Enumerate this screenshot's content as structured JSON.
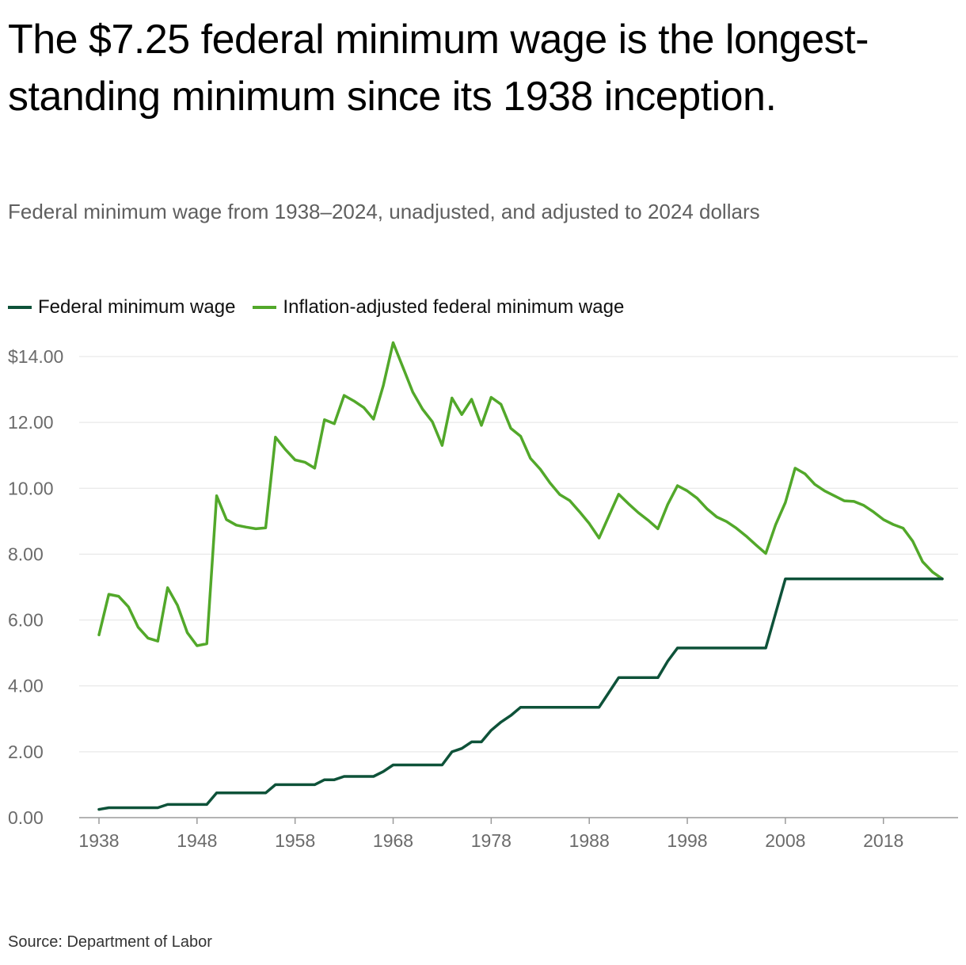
{
  "title": "The $7.25 federal minimum wage is the longest-standing minimum since its 1938 inception.",
  "subtitle": "Federal minimum wage from 1938–2024, unadjusted, and adjusted to 2024 dollars",
  "source": "Source: Department of Labor",
  "colors": {
    "nominal": "#0e5239",
    "adjusted": "#52a82a"
  },
  "chart_data": {
    "type": "line",
    "title": "The $7.25 federal minimum wage is the longest-standing minimum since its 1938 inception.",
    "subtitle": "Federal minimum wage from 1938–2024, unadjusted, and adjusted to 2024 dollars",
    "xlabel": "",
    "ylabel": "",
    "xlim": [
      1938,
      2024
    ],
    "ylim": [
      0,
      14
    ],
    "x_ticks": [
      1938,
      1948,
      1958,
      1968,
      1978,
      1988,
      1998,
      2008,
      2018
    ],
    "x_tick_labels": [
      "1938",
      "1948",
      "1958",
      "1968",
      "1978",
      "1988",
      "1998",
      "2008",
      "2018"
    ],
    "y_ticks": [
      0,
      2,
      4,
      6,
      8,
      10,
      12,
      14
    ],
    "y_tick_labels": [
      "0.00",
      "2.00",
      "4.00",
      "6.00",
      "8.00",
      "10.00",
      "12.00",
      "$14.00"
    ],
    "grid": true,
    "legend_position": "top-left",
    "x": [
      1938,
      1939,
      1940,
      1941,
      1942,
      1943,
      1944,
      1945,
      1946,
      1947,
      1948,
      1949,
      1950,
      1951,
      1952,
      1953,
      1954,
      1955,
      1956,
      1957,
      1958,
      1959,
      1960,
      1961,
      1962,
      1963,
      1964,
      1965,
      1966,
      1967,
      1968,
      1969,
      1970,
      1971,
      1972,
      1973,
      1974,
      1975,
      1976,
      1977,
      1978,
      1979,
      1980,
      1981,
      1982,
      1983,
      1984,
      1985,
      1986,
      1987,
      1988,
      1989,
      1990,
      1991,
      1992,
      1993,
      1994,
      1995,
      1996,
      1997,
      1998,
      1999,
      2000,
      2001,
      2002,
      2003,
      2004,
      2005,
      2006,
      2007,
      2008,
      2009,
      2010,
      2011,
      2012,
      2013,
      2014,
      2015,
      2016,
      2017,
      2018,
      2019,
      2020,
      2021,
      2022,
      2023,
      2024
    ],
    "series": [
      {
        "name": "Federal minimum wage",
        "values": [
          0.25,
          0.3,
          0.3,
          0.3,
          0.3,
          0.3,
          0.3,
          0.4,
          0.4,
          0.4,
          0.4,
          0.4,
          0.75,
          0.75,
          0.75,
          0.75,
          0.75,
          0.75,
          1.0,
          1.0,
          1.0,
          1.0,
          1.0,
          1.15,
          1.15,
          1.25,
          1.25,
          1.25,
          1.25,
          1.4,
          1.6,
          1.6,
          1.6,
          1.6,
          1.6,
          1.6,
          2.0,
          2.1,
          2.3,
          2.3,
          2.65,
          2.9,
          3.1,
          3.35,
          3.35,
          3.35,
          3.35,
          3.35,
          3.35,
          3.35,
          3.35,
          3.35,
          3.8,
          4.25,
          4.25,
          4.25,
          4.25,
          4.25,
          4.75,
          5.15,
          5.15,
          5.15,
          5.15,
          5.15,
          5.15,
          5.15,
          5.15,
          5.15,
          5.15,
          6.2,
          7.25,
          7.25,
          7.25,
          7.25,
          7.25,
          7.25,
          7.25,
          7.25,
          7.25,
          7.25,
          7.25,
          7.25,
          7.25,
          7.25,
          7.25,
          7.25,
          7.25
        ]
      },
      {
        "name": "Inflation-adjusted federal minimum wage",
        "values": [
          5.55,
          6.78,
          6.72,
          6.4,
          5.78,
          5.45,
          5.36,
          6.98,
          6.45,
          5.62,
          5.22,
          5.28,
          9.77,
          9.05,
          8.88,
          8.82,
          8.77,
          8.8,
          11.55,
          11.18,
          10.86,
          10.79,
          10.61,
          12.08,
          11.96,
          12.82,
          12.65,
          12.45,
          12.1,
          13.12,
          14.42,
          13.67,
          12.92,
          12.4,
          12.02,
          11.3,
          12.74,
          12.24,
          12.7,
          11.91,
          12.76,
          12.55,
          11.82,
          11.58,
          10.91,
          10.58,
          10.16,
          9.81,
          9.63,
          9.29,
          8.93,
          8.49,
          9.16,
          9.82,
          9.53,
          9.26,
          9.03,
          8.77,
          9.51,
          10.08,
          9.92,
          9.7,
          9.38,
          9.13,
          8.99,
          8.79,
          8.55,
          8.28,
          8.02,
          8.89,
          9.57,
          10.61,
          10.44,
          10.12,
          9.92,
          9.77,
          9.62,
          9.6,
          9.48,
          9.28,
          9.05,
          8.9,
          8.79,
          8.39,
          7.77,
          7.46,
          7.25
        ]
      }
    ]
  }
}
